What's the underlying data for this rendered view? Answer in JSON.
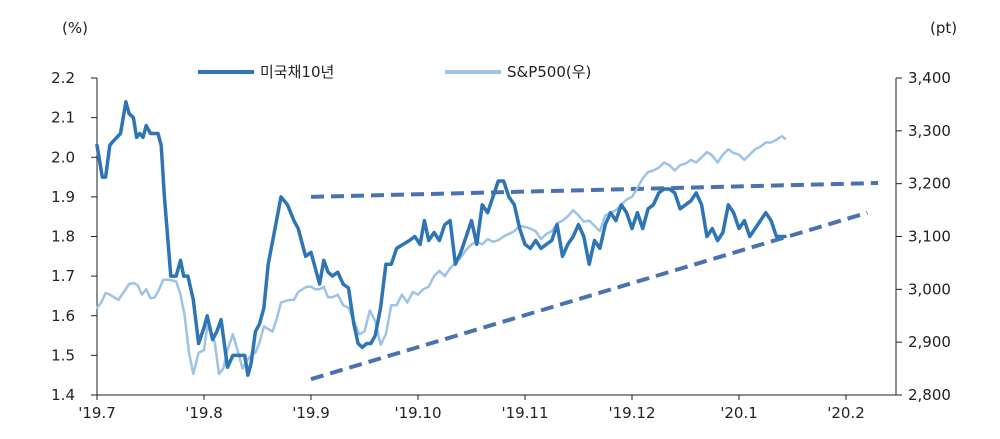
{
  "chart_data": {
    "type": "line",
    "left_axis_unit": "(%)",
    "right_axis_unit": "(pt)",
    "x_labels": [
      "'19.7",
      "'19.8",
      "'19.9",
      "'19.10",
      "'19.11",
      "'19.12",
      "'20.1",
      "'20.2"
    ],
    "x_months": [
      0,
      1,
      2,
      3,
      4,
      5,
      6,
      7
    ],
    "ylim_left": [
      1.4,
      2.2
    ],
    "ylim_right": [
      2800,
      3400
    ],
    "yticks_left": [
      "1.4",
      "1.5",
      "1.6",
      "1.7",
      "1.8",
      "1.9",
      "2.0",
      "2.1",
      "2.2"
    ],
    "yticks_right": [
      "2,800",
      "2,900",
      "3,000",
      "3,100",
      "3,200",
      "3,300",
      "3,400"
    ],
    "legend": "top",
    "grid": false,
    "series": [
      {
        "name": "미국채10년",
        "axis": "left",
        "color": "#2e75b6",
        "x": [
          0.0,
          0.05,
          0.08,
          0.12,
          0.15,
          0.22,
          0.27,
          0.3,
          0.34,
          0.37,
          0.4,
          0.43,
          0.46,
          0.5,
          0.54,
          0.57,
          0.6,
          0.63,
          0.66,
          0.69,
          0.74,
          0.78,
          0.81,
          0.85,
          0.9,
          0.95,
          1.0,
          1.03,
          1.08,
          1.12,
          1.16,
          1.22,
          1.27,
          1.31,
          1.35,
          1.38,
          1.41,
          1.44,
          1.48,
          1.52,
          1.56,
          1.6,
          1.65,
          1.72,
          1.78,
          1.84,
          1.88,
          1.95,
          2.0,
          2.04,
          2.08,
          2.12,
          2.16,
          2.2,
          2.25,
          2.3,
          2.35,
          2.4,
          2.44,
          2.48,
          2.52,
          2.56,
          2.6,
          2.65,
          2.7,
          2.75,
          2.8,
          2.86,
          2.92,
          2.97,
          3.02,
          3.06,
          3.1,
          3.15,
          3.2,
          3.25,
          3.3,
          3.35,
          3.4,
          3.45,
          3.5,
          3.55,
          3.6,
          3.65,
          3.7,
          3.75,
          3.8,
          3.85,
          3.9,
          3.95,
          4.0,
          4.05,
          4.1,
          4.15,
          4.2,
          4.25,
          4.3,
          4.35,
          4.4,
          4.45,
          4.5,
          4.55,
          4.6,
          4.65,
          4.7,
          4.75,
          4.8,
          4.85,
          4.9,
          4.95,
          5.0,
          5.05,
          5.1,
          5.15,
          5.2,
          5.25,
          5.3,
          5.35,
          5.4,
          5.45,
          5.5,
          5.55,
          5.6,
          5.65,
          5.7,
          5.75,
          5.8,
          5.85,
          5.9,
          5.95,
          6.0,
          6.05,
          6.1,
          6.15,
          6.2,
          6.25,
          6.3,
          6.35,
          6.4,
          6.43
        ],
        "y": [
          2.03,
          1.95,
          1.95,
          2.03,
          2.04,
          2.06,
          2.14,
          2.11,
          2.1,
          2.05,
          2.06,
          2.05,
          2.08,
          2.06,
          2.06,
          2.06,
          2.03,
          1.9,
          1.8,
          1.7,
          1.7,
          1.74,
          1.7,
          1.7,
          1.64,
          1.53,
          1.57,
          1.6,
          1.54,
          1.56,
          1.59,
          1.47,
          1.5,
          1.5,
          1.5,
          1.5,
          1.45,
          1.48,
          1.56,
          1.58,
          1.62,
          1.73,
          1.8,
          1.9,
          1.88,
          1.84,
          1.82,
          1.75,
          1.76,
          1.72,
          1.68,
          1.74,
          1.71,
          1.7,
          1.71,
          1.68,
          1.67,
          1.58,
          1.53,
          1.52,
          1.53,
          1.53,
          1.55,
          1.62,
          1.73,
          1.73,
          1.77,
          1.78,
          1.79,
          1.8,
          1.78,
          1.84,
          1.79,
          1.81,
          1.79,
          1.83,
          1.84,
          1.73,
          1.76,
          1.8,
          1.84,
          1.78,
          1.88,
          1.86,
          1.9,
          1.94,
          1.94,
          1.9,
          1.88,
          1.82,
          1.78,
          1.77,
          1.79,
          1.77,
          1.78,
          1.79,
          1.83,
          1.75,
          1.78,
          1.8,
          1.83,
          1.8,
          1.73,
          1.79,
          1.77,
          1.83,
          1.86,
          1.84,
          1.88,
          1.86,
          1.82,
          1.86,
          1.82,
          1.87,
          1.88,
          1.91,
          1.92,
          1.92,
          1.91,
          1.87,
          1.88,
          1.89,
          1.91,
          1.88,
          1.8,
          1.82,
          1.79,
          1.81,
          1.88,
          1.86,
          1.82,
          1.84,
          1.8,
          1.82,
          1.84,
          1.86,
          1.84,
          1.8,
          1.8,
          1.8
        ],
        "width": 3.5
      },
      {
        "name": "S&P500(우)",
        "axis": "right",
        "color": "#9dc3e6",
        "x": [
          0.0,
          0.04,
          0.08,
          0.12,
          0.16,
          0.2,
          0.25,
          0.3,
          0.34,
          0.38,
          0.42,
          0.46,
          0.5,
          0.54,
          0.58,
          0.62,
          0.66,
          0.7,
          0.74,
          0.78,
          0.82,
          0.86,
          0.9,
          0.95,
          1.0,
          1.03,
          1.06,
          1.1,
          1.14,
          1.18,
          1.22,
          1.27,
          1.32,
          1.36,
          1.4,
          1.44,
          1.48,
          1.52,
          1.56,
          1.6,
          1.64,
          1.68,
          1.72,
          1.76,
          1.8,
          1.84,
          1.88,
          1.92,
          1.96,
          2.0,
          2.04,
          2.08,
          2.12,
          2.16,
          2.2,
          2.25,
          2.3,
          2.35,
          2.4,
          2.45,
          2.5,
          2.55,
          2.6,
          2.65,
          2.7,
          2.75,
          2.8,
          2.85,
          2.9,
          2.95,
          3.0,
          3.05,
          3.1,
          3.15,
          3.2,
          3.25,
          3.3,
          3.35,
          3.4,
          3.45,
          3.5,
          3.55,
          3.6,
          3.65,
          3.7,
          3.75,
          3.8,
          3.85,
          3.9,
          3.95,
          4.0,
          4.05,
          4.1,
          4.15,
          4.2,
          4.25,
          4.3,
          4.35,
          4.4,
          4.45,
          4.5,
          4.55,
          4.6,
          4.65,
          4.7,
          4.75,
          4.8,
          4.85,
          4.9,
          4.95,
          5.0,
          5.05,
          5.1,
          5.15,
          5.2,
          5.25,
          5.3,
          5.35,
          5.4,
          5.45,
          5.5,
          5.55,
          5.6,
          5.65,
          5.7,
          5.75,
          5.8,
          5.85,
          5.9,
          5.95,
          6.0,
          6.05,
          6.1,
          6.15,
          6.2,
          6.25,
          6.3,
          6.35,
          6.4,
          6.43
        ],
        "y": [
          2965,
          2975,
          2993,
          2990,
          2985,
          2980,
          2995,
          3010,
          3012,
          3008,
          2990,
          3000,
          2983,
          2985,
          3000,
          3018,
          3018,
          3017,
          3015,
          2990,
          2950,
          2880,
          2840,
          2880,
          2885,
          2930,
          2920,
          2900,
          2840,
          2850,
          2885,
          2915,
          2880,
          2850,
          2865,
          2875,
          2880,
          2900,
          2930,
          2925,
          2920,
          2945,
          2975,
          2978,
          2980,
          2980,
          2995,
          3000,
          3005,
          3005,
          3000,
          3000,
          3005,
          2985,
          2985,
          2990,
          2970,
          2965,
          2940,
          2915,
          2920,
          2960,
          2940,
          2895,
          2915,
          2970,
          2970,
          2990,
          2975,
          2995,
          2990,
          3000,
          3005,
          3025,
          3035,
          3025,
          3040,
          3050,
          3060,
          3075,
          3085,
          3090,
          3085,
          3095,
          3090,
          3093,
          3100,
          3105,
          3110,
          3120,
          3118,
          3115,
          3110,
          3095,
          3105,
          3110,
          3125,
          3130,
          3138,
          3150,
          3140,
          3128,
          3130,
          3120,
          3110,
          3140,
          3145,
          3150,
          3160,
          3170,
          3175,
          3192,
          3210,
          3222,
          3225,
          3230,
          3240,
          3235,
          3225,
          3235,
          3238,
          3245,
          3240,
          3250,
          3260,
          3253,
          3240,
          3255,
          3265,
          3258,
          3255,
          3245,
          3255,
          3265,
          3270,
          3278,
          3278,
          3283,
          3290,
          3285
        ],
        "width": 2.5
      }
    ],
    "trendlines": [
      {
        "color": "#4a72b0",
        "from": [
          2.0,
          1.9
        ],
        "to": [
          7.3,
          1.935
        ]
      },
      {
        "color": "#4a72b0",
        "from": [
          2.0,
          1.44
        ],
        "to": [
          7.2,
          1.86
        ]
      }
    ]
  }
}
